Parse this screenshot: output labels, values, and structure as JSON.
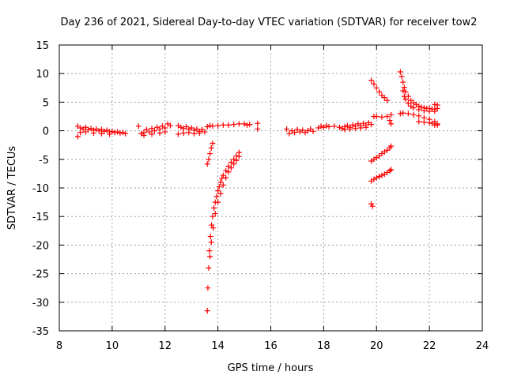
{
  "chart_data": {
    "type": "scatter",
    "title": "Day 236 of 2021, Sidereal Day-to-day VTEC variation (SDTVAR) for receiver tow2",
    "xlabel": "GPS time / hours",
    "ylabel": "SDTVAR / TECUs",
    "xlim": [
      8,
      24
    ],
    "ylim": [
      -35,
      15
    ],
    "xticks": [
      8,
      10,
      12,
      14,
      16,
      18,
      20,
      22,
      24
    ],
    "yticks": [
      15,
      10,
      5,
      0,
      -5,
      -10,
      -15,
      -20,
      -25,
      -30,
      -35
    ],
    "grid": true,
    "marker": "plus",
    "color": "#ff0000",
    "series": [
      {
        "name": "SDTVAR",
        "points": [
          [
            8.7,
            0.8
          ],
          [
            8.8,
            0.5
          ],
          [
            8.9,
            0.3
          ],
          [
            9.0,
            0.6
          ],
          [
            9.1,
            0.2
          ],
          [
            9.2,
            0.4
          ],
          [
            9.3,
            0.1
          ],
          [
            9.4,
            0.3
          ],
          [
            9.5,
            0.0
          ],
          [
            9.6,
            0.2
          ],
          [
            9.7,
            -0.1
          ],
          [
            9.8,
            0.1
          ],
          [
            9.9,
            -0.2
          ],
          [
            10.0,
            -0.1
          ],
          [
            10.1,
            -0.3
          ],
          [
            10.2,
            -0.2
          ],
          [
            10.3,
            -0.4
          ],
          [
            10.4,
            -0.3
          ],
          [
            10.5,
            -0.5
          ],
          [
            8.7,
            -1.0
          ],
          [
            8.8,
            -0.3
          ],
          [
            9.0,
            -0.2
          ],
          [
            9.3,
            -0.4
          ],
          [
            9.6,
            -0.5
          ],
          [
            9.9,
            -0.6
          ],
          [
            11.0,
            0.8
          ],
          [
            11.1,
            -0.5
          ],
          [
            11.2,
            -0.3
          ],
          [
            11.3,
            0.2
          ],
          [
            11.4,
            -0.2
          ],
          [
            11.5,
            0.4
          ],
          [
            11.6,
            0.0
          ],
          [
            11.7,
            0.6
          ],
          [
            11.8,
            0.3
          ],
          [
            11.9,
            0.8
          ],
          [
            12.0,
            0.5
          ],
          [
            12.1,
            1.2
          ],
          [
            12.2,
            0.9
          ],
          [
            11.2,
            -0.8
          ],
          [
            11.5,
            -0.6
          ],
          [
            11.8,
            -0.4
          ],
          [
            12.0,
            -0.2
          ],
          [
            12.5,
            0.9
          ],
          [
            12.6,
            0.6
          ],
          [
            12.7,
            0.4
          ],
          [
            12.8,
            0.7
          ],
          [
            12.9,
            0.3
          ],
          [
            13.0,
            0.5
          ],
          [
            13.1,
            0.1
          ],
          [
            13.2,
            0.3
          ],
          [
            13.3,
            -0.1
          ],
          [
            13.4,
            0.2
          ],
          [
            13.5,
            -0.2
          ],
          [
            12.5,
            -0.6
          ],
          [
            12.7,
            -0.4
          ],
          [
            12.9,
            -0.3
          ],
          [
            13.1,
            -0.5
          ],
          [
            13.3,
            -0.4
          ],
          [
            13.6,
            0.7
          ],
          [
            13.7,
            0.9
          ],
          [
            13.8,
            0.8
          ],
          [
            14.0,
            0.9
          ],
          [
            14.2,
            1.0
          ],
          [
            14.4,
            1.0
          ],
          [
            14.6,
            1.1
          ],
          [
            14.8,
            1.2
          ],
          [
            15.0,
            1.2
          ],
          [
            15.5,
            1.3
          ],
          [
            15.5,
            0.3
          ],
          [
            15.1,
            1.0
          ],
          [
            15.2,
            1.1
          ],
          [
            13.6,
            -31.5
          ],
          [
            13.62,
            -27.5
          ],
          [
            13.65,
            -24.0
          ],
          [
            13.68,
            -21.0
          ],
          [
            13.72,
            -18.5
          ],
          [
            13.76,
            -16.5
          ],
          [
            13.8,
            -15.0
          ],
          [
            13.85,
            -13.5
          ],
          [
            13.9,
            -12.5
          ],
          [
            13.95,
            -11.5
          ],
          [
            14.0,
            -10.5
          ],
          [
            14.05,
            -9.8
          ],
          [
            14.1,
            -9.0
          ],
          [
            14.15,
            -8.3
          ],
          [
            14.2,
            -7.8
          ],
          [
            14.3,
            -7.0
          ],
          [
            14.4,
            -6.2
          ],
          [
            14.5,
            -5.5
          ],
          [
            14.6,
            -5.0
          ],
          [
            14.7,
            -4.4
          ],
          [
            14.8,
            -3.8
          ],
          [
            13.7,
            -22.0
          ],
          [
            13.75,
            -19.5
          ],
          [
            13.82,
            -17.0
          ],
          [
            13.9,
            -14.5
          ],
          [
            14.0,
            -12.5
          ],
          [
            14.1,
            -11.0
          ],
          [
            14.2,
            -9.5
          ],
          [
            14.3,
            -8.2
          ],
          [
            14.4,
            -7.2
          ],
          [
            14.5,
            -6.5
          ],
          [
            14.6,
            -5.8
          ],
          [
            14.7,
            -5.2
          ],
          [
            14.8,
            -4.5
          ],
          [
            13.6,
            -5.8
          ],
          [
            13.65,
            -5.0
          ],
          [
            13.7,
            -4.0
          ],
          [
            13.75,
            -3.0
          ],
          [
            13.8,
            -2.2
          ],
          [
            16.6,
            0.3
          ],
          [
            16.7,
            -0.5
          ],
          [
            16.8,
            0.0
          ],
          [
            16.9,
            -0.3
          ],
          [
            17.0,
            0.2
          ],
          [
            17.1,
            -0.2
          ],
          [
            17.2,
            0.1
          ],
          [
            17.3,
            -0.3
          ],
          [
            17.4,
            0.0
          ],
          [
            17.5,
            0.3
          ],
          [
            17.6,
            -0.1
          ],
          [
            17.8,
            0.5
          ],
          [
            17.9,
            0.8
          ],
          [
            18.0,
            0.6
          ],
          [
            18.1,
            0.9
          ],
          [
            18.2,
            0.7
          ],
          [
            18.4,
            0.8
          ],
          [
            18.6,
            0.6
          ],
          [
            18.7,
            0.4
          ],
          [
            18.8,
            0.7
          ],
          [
            18.9,
            0.9
          ],
          [
            19.0,
            0.6
          ],
          [
            19.1,
            1.0
          ],
          [
            19.2,
            0.8
          ],
          [
            19.3,
            1.2
          ],
          [
            19.4,
            0.9
          ],
          [
            19.5,
            1.3
          ],
          [
            19.6,
            1.0
          ],
          [
            19.7,
            1.4
          ],
          [
            19.8,
            1.1
          ],
          [
            18.8,
            0.2
          ],
          [
            19.0,
            0.3
          ],
          [
            19.2,
            0.4
          ],
          [
            19.4,
            0.5
          ],
          [
            19.6,
            0.6
          ],
          [
            19.8,
            8.8
          ],
          [
            19.9,
            8.2
          ],
          [
            20.0,
            7.5
          ],
          [
            20.1,
            6.8
          ],
          [
            20.2,
            6.2
          ],
          [
            20.3,
            5.8
          ],
          [
            20.4,
            5.3
          ],
          [
            19.9,
            2.5
          ],
          [
            20.0,
            2.5
          ],
          [
            20.2,
            2.4
          ],
          [
            20.4,
            2.5
          ],
          [
            20.55,
            2.8
          ],
          [
            20.5,
            1.8
          ],
          [
            20.55,
            1.2
          ],
          [
            19.8,
            -5.3
          ],
          [
            19.9,
            -5.0
          ],
          [
            20.0,
            -4.7
          ],
          [
            20.1,
            -4.4
          ],
          [
            20.2,
            -4.0
          ],
          [
            20.3,
            -3.7
          ],
          [
            20.4,
            -3.4
          ],
          [
            20.5,
            -3.0
          ],
          [
            20.55,
            -2.7
          ],
          [
            19.8,
            -8.8
          ],
          [
            19.9,
            -8.5
          ],
          [
            20.0,
            -8.2
          ],
          [
            20.1,
            -8.0
          ],
          [
            20.2,
            -7.8
          ],
          [
            20.3,
            -7.6
          ],
          [
            20.4,
            -7.3
          ],
          [
            20.5,
            -7.0
          ],
          [
            20.55,
            -6.8
          ],
          [
            19.8,
            -12.8
          ],
          [
            19.85,
            -13.2
          ],
          [
            20.9,
            10.3
          ],
          [
            20.95,
            9.5
          ],
          [
            21.0,
            8.5
          ],
          [
            21.05,
            7.6
          ],
          [
            21.1,
            6.8
          ],
          [
            21.2,
            6.0
          ],
          [
            21.3,
            5.3
          ],
          [
            21.4,
            4.9
          ],
          [
            21.5,
            4.6
          ],
          [
            21.6,
            4.3
          ],
          [
            21.7,
            4.1
          ],
          [
            21.8,
            4.0
          ],
          [
            21.9,
            3.9
          ],
          [
            22.0,
            3.9
          ],
          [
            22.1,
            3.8
          ],
          [
            22.2,
            3.8
          ],
          [
            22.3,
            3.9
          ],
          [
            21.0,
            7.0
          ],
          [
            21.05,
            6.0
          ],
          [
            21.1,
            5.5
          ],
          [
            21.2,
            4.8
          ],
          [
            21.3,
            4.3
          ],
          [
            21.4,
            4.0
          ],
          [
            21.6,
            3.7
          ],
          [
            21.8,
            3.5
          ],
          [
            22.0,
            3.4
          ],
          [
            22.2,
            3.4
          ],
          [
            22.3,
            4.5
          ],
          [
            22.2,
            4.6
          ],
          [
            20.9,
            3.0
          ],
          [
            21.0,
            3.1
          ],
          [
            21.2,
            3.0
          ],
          [
            21.4,
            2.8
          ],
          [
            21.6,
            2.6
          ],
          [
            21.8,
            2.3
          ],
          [
            22.0,
            2.0
          ],
          [
            22.2,
            1.6
          ],
          [
            22.3,
            1.2
          ],
          [
            21.6,
            1.6
          ],
          [
            21.8,
            1.5
          ],
          [
            22.0,
            1.4
          ],
          [
            22.1,
            1.3
          ],
          [
            22.2,
            1.0
          ],
          [
            22.3,
            1.0
          ]
        ]
      }
    ]
  }
}
